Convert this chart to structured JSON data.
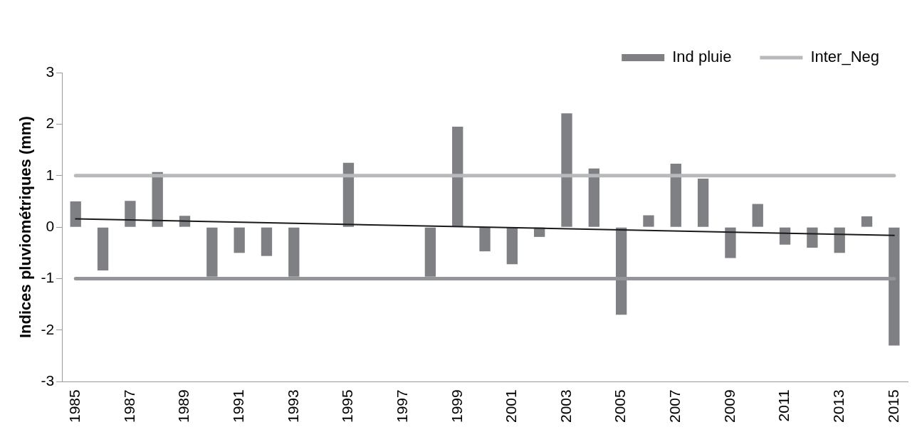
{
  "chart_data": {
    "type": "bar",
    "ylabel": "Indices pluviométriques (mm)",
    "categories": [
      "1985",
      null,
      "1987",
      null,
      "1989",
      null,
      "1991",
      null,
      "1993",
      null,
      "1995",
      null,
      "1997",
      null,
      "1999",
      null,
      "2001",
      null,
      "2003",
      null,
      "2005",
      null,
      "2007",
      null,
      "2009",
      null,
      "2011",
      null,
      "2013",
      null,
      "2015"
    ],
    "series": [
      {
        "name": "Ind pluie",
        "color": "#7f8084",
        "values": [
          0.5,
          -0.84,
          0.51,
          1.07,
          0.22,
          -0.96,
          -0.5,
          -0.56,
          -0.96,
          0,
          1.25,
          0,
          0,
          -0.96,
          1.95,
          -0.47,
          -0.72,
          -0.19,
          2.21,
          1.14,
          -1.7,
          0.23,
          1.23,
          0.94,
          -0.6,
          0.45,
          -0.34,
          -0.4,
          -0.5,
          0.21,
          -2.3
        ]
      },
      {
        "name": "Inter_Neg",
        "type": "line",
        "color": "#b8b9bc",
        "values": [
          1,
          1,
          1,
          1,
          1,
          1,
          1,
          1,
          1,
          1,
          1,
          1,
          1,
          1,
          1,
          1,
          1,
          1,
          1,
          1,
          1,
          1,
          1,
          1,
          1,
          1,
          1,
          1,
          1,
          1,
          1
        ]
      },
      {
        "type": "line",
        "color": "#939598",
        "values": [
          -1,
          -1,
          -1,
          -1,
          -1,
          -1,
          -1,
          -1,
          -1,
          -1,
          -1,
          -1,
          -1,
          -1,
          -1,
          -1,
          -1,
          -1,
          -1,
          -1,
          -1,
          -1,
          -1,
          -1,
          -1,
          -1,
          -1,
          -1,
          -1,
          -1,
          -1
        ]
      },
      {
        "type": "line",
        "color": "#1a1a1a",
        "values": [
          0.16,
          null,
          null,
          null,
          null,
          null,
          null,
          null,
          null,
          null,
          null,
          null,
          null,
          null,
          null,
          null,
          null,
          null,
          null,
          null,
          null,
          null,
          null,
          null,
          null,
          null,
          null,
          null,
          null,
          null,
          -0.16
        ]
      }
    ],
    "ylim": [
      -3,
      3
    ],
    "yticks": [
      -3,
      -2,
      -1,
      0,
      1,
      2,
      3
    ],
    "grid": false,
    "legend": "top right",
    "marker": "none",
    "line_style": "solid"
  }
}
